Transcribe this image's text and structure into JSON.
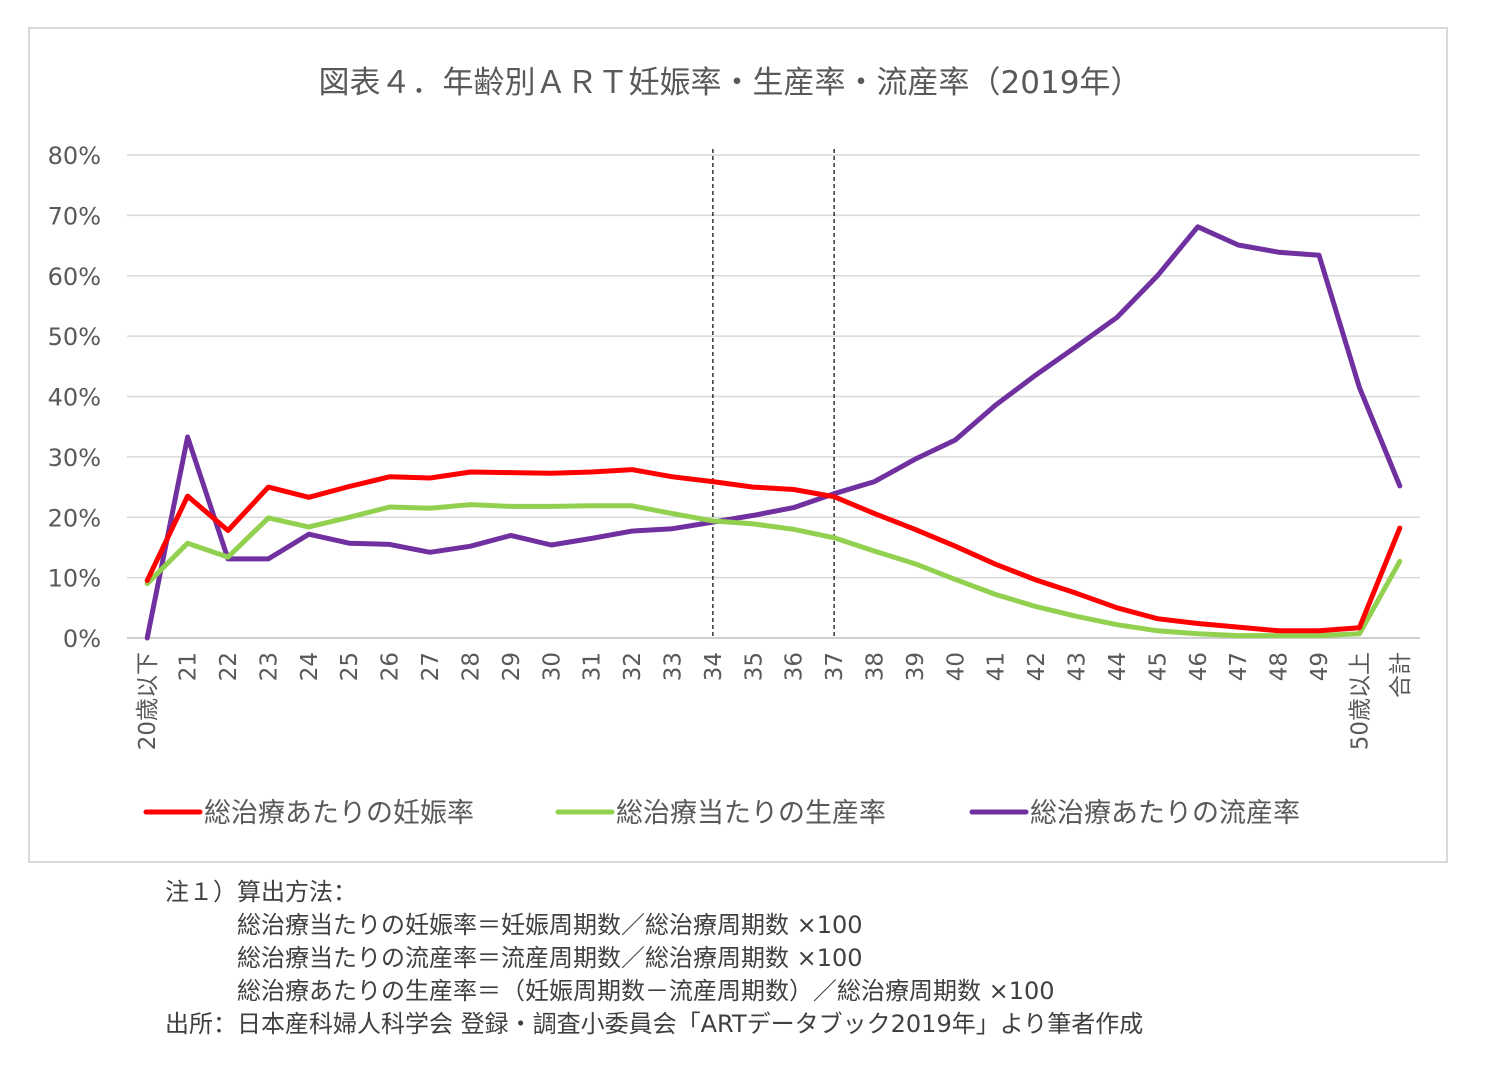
{
  "chart_data": {
    "type": "line",
    "title": "図表４．年齢別ＡＲＴ妊娠率・生産率・流産率（2019年）",
    "categories": [
      "20歳以下",
      "21",
      "22",
      "23",
      "24",
      "25",
      "26",
      "27",
      "28",
      "29",
      "30",
      "31",
      "32",
      "33",
      "34",
      "35",
      "36",
      "37",
      "38",
      "39",
      "40",
      "41",
      "42",
      "43",
      "44",
      "45",
      "46",
      "47",
      "48",
      "49",
      "50歳以上",
      "合計"
    ],
    "y_ticks": [
      "0%",
      "10%",
      "20%",
      "30%",
      "40%",
      "50%",
      "60%",
      "70%",
      "80%"
    ],
    "ylim": [
      0,
      80
    ],
    "grid": true,
    "legend_position": "bottom",
    "reference_lines": [
      "34",
      "37"
    ],
    "series": [
      {
        "name": "総治療あたりの妊娠率",
        "color": "#ff0000",
        "values": [
          9.5,
          23.5,
          17.8,
          25.0,
          23.3,
          25.1,
          26.7,
          26.5,
          27.5,
          27.4,
          27.3,
          27.5,
          27.9,
          26.7,
          25.9,
          25.0,
          24.6,
          23.4,
          20.6,
          18.0,
          15.2,
          12.2,
          9.6,
          7.4,
          5.0,
          3.2,
          2.4,
          1.8,
          1.2,
          1.2,
          1.7,
          18.2
        ]
      },
      {
        "name": "総治療当たりの生産率",
        "color": "#92d050",
        "values": [
          9.0,
          15.7,
          13.4,
          19.9,
          18.4,
          20.0,
          21.7,
          21.5,
          22.1,
          21.8,
          21.8,
          21.9,
          21.9,
          20.6,
          19.4,
          18.9,
          18.0,
          16.6,
          14.4,
          12.3,
          9.7,
          7.2,
          5.2,
          3.6,
          2.2,
          1.2,
          0.7,
          0.4,
          0.4,
          0.4,
          0.7,
          12.7
        ]
      },
      {
        "name": "総治療あたりの流産率",
        "color": "#7030a0",
        "values": [
          0.0,
          33.3,
          13.1,
          13.1,
          17.2,
          15.7,
          15.5,
          14.2,
          15.2,
          17.0,
          15.4,
          16.5,
          17.7,
          18.1,
          19.2,
          20.3,
          21.6,
          23.9,
          25.9,
          29.6,
          32.8,
          38.6,
          43.6,
          48.3,
          53.1,
          60.0,
          68.1,
          65.1,
          63.9,
          63.4,
          41.5,
          25.2
        ]
      }
    ]
  },
  "notes": {
    "line1": "注１）算出方法：",
    "line2": "総治療当たりの妊娠率＝妊娠周期数／総治療周期数  ×100",
    "line3": "総治療当たりの流産率＝流産周期数／総治療周期数  ×100",
    "line4": "総治療あたりの生産率＝（妊娠周期数－流産周期数）／総治療周期数  ×100",
    "source": "出所：日本産科婦人科学会  登録・調査小委員会「ARTデータブック2019年」より筆者作成"
  }
}
